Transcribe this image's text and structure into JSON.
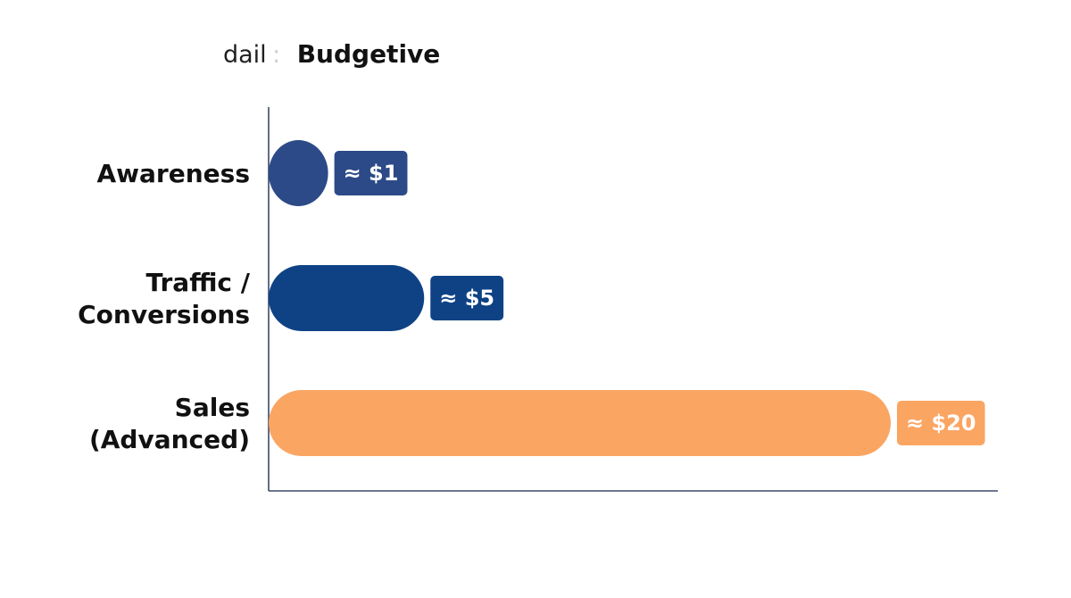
{
  "chart_data": {
    "type": "bar",
    "orientation": "horizontal",
    "title_prefix": "dail",
    "title_separator": ":",
    "title": "Budgetive",
    "xlabel": "",
    "ylabel": "",
    "categories": [
      [
        "Awareness"
      ],
      [
        "Traffic /",
        "Conversions"
      ],
      [
        "Sales",
        "(Advanced)"
      ]
    ],
    "values": [
      1,
      5,
      20
    ],
    "value_labels": [
      "≈ $1",
      "≈ $5",
      "≈ $20"
    ],
    "colors": [
      "#2c4a87",
      "#0f4285",
      "#fba563"
    ],
    "xlim": [
      0,
      20
    ],
    "grid": false,
    "legend": "none"
  }
}
